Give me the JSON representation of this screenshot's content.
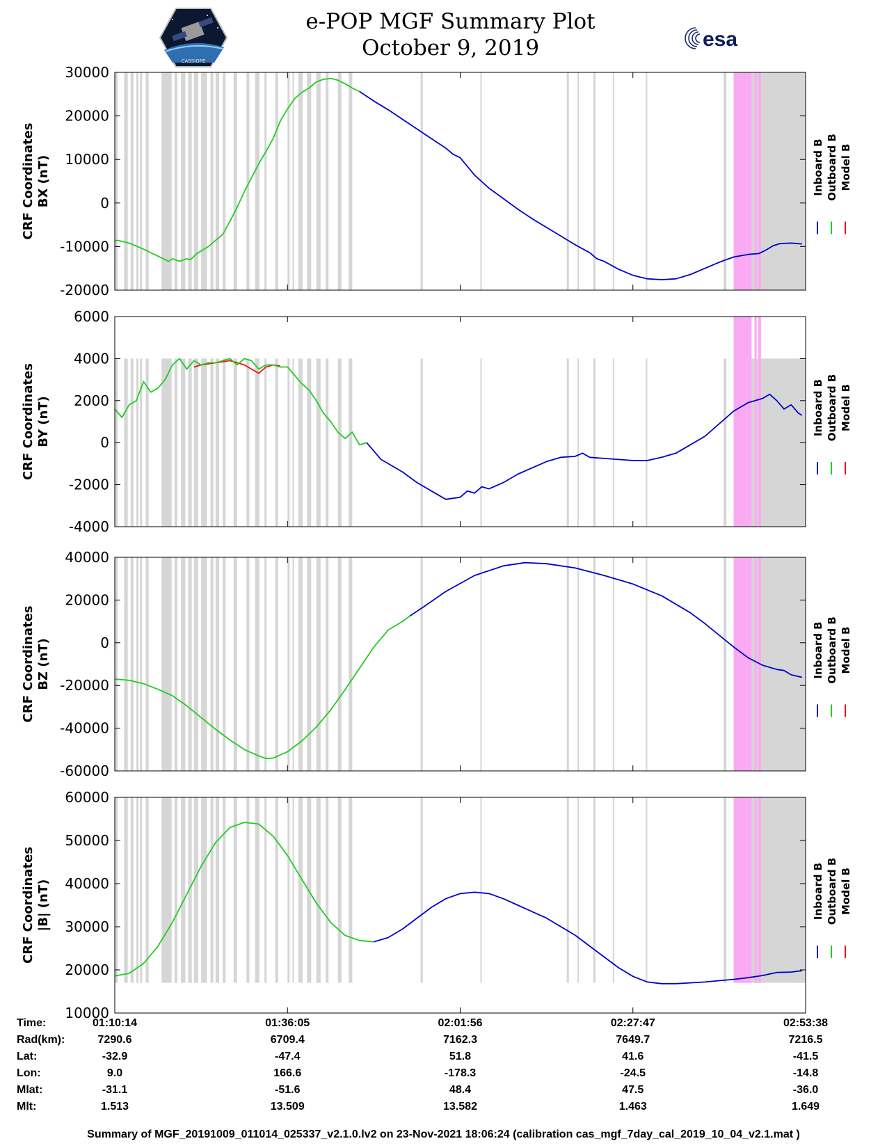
{
  "title": {
    "line1": "e-POP MGF Summary Plot",
    "line2": "October 9, 2019"
  },
  "logos": {
    "left": {
      "name": "cassiope-logo",
      "text": "CASSIOPE"
    },
    "right": {
      "name": "esa-logo",
      "text": "esa"
    }
  },
  "colors": {
    "inboard": "#0000cc",
    "outboard": "#22cc22",
    "model": "#ee1111",
    "gap_gray": "#d6d6d6",
    "gap_pink": "#f9aaf3"
  },
  "legend": {
    "inboard": "Inboard B",
    "outboard": "Outboard B",
    "model": "Model B"
  },
  "chart_data": [
    {
      "type": "line",
      "name": "bx",
      "ylabel": [
        "CRF Coordinates",
        "BX (nT)"
      ],
      "ylim": [
        -20000,
        30000
      ],
      "yticks": [
        -20000,
        -10000,
        0,
        10000,
        20000,
        30000
      ],
      "gap_range": [
        -20000,
        30000
      ],
      "pink_range": [
        -20000,
        30000
      ],
      "outboard": [
        [
          0,
          -8600
        ],
        [
          0.5,
          -8600
        ],
        [
          2,
          -9200
        ],
        [
          4,
          -10600
        ],
        [
          6,
          -12200
        ],
        [
          7.5,
          -13400
        ],
        [
          8,
          -12800
        ],
        [
          9,
          -13400
        ],
        [
          10,
          -12800
        ],
        [
          10.5,
          -13000
        ],
        [
          11.5,
          -11500
        ],
        [
          13,
          -10000
        ],
        [
          14,
          -8600
        ],
        [
          15,
          -7200
        ],
        [
          16,
          -4200
        ],
        [
          17,
          -1000
        ],
        [
          18,
          2600
        ],
        [
          19,
          5800
        ],
        [
          20,
          9000
        ],
        [
          21,
          11800
        ],
        [
          22,
          14800
        ],
        [
          23,
          18800
        ],
        [
          24,
          21600
        ],
        [
          25,
          24000
        ],
        [
          26,
          25400
        ],
        [
          27,
          26400
        ],
        [
          28,
          27800
        ],
        [
          29,
          28400
        ],
        [
          30,
          28600
        ],
        [
          31,
          28200
        ],
        [
          32,
          27400
        ],
        [
          33,
          26400
        ],
        [
          34,
          25600
        ]
      ],
      "inboard": [
        [
          34,
          25600
        ],
        [
          36,
          23400
        ],
        [
          38,
          21400
        ],
        [
          40,
          19200
        ],
        [
          42,
          17000
        ],
        [
          44,
          14800
        ],
        [
          46,
          12600
        ],
        [
          47,
          11200
        ],
        [
          48,
          10400
        ],
        [
          49,
          8400
        ],
        [
          50,
          6400
        ],
        [
          52,
          3400
        ],
        [
          54,
          1000
        ],
        [
          56,
          -1400
        ],
        [
          58,
          -3600
        ],
        [
          60,
          -5600
        ],
        [
          62,
          -7600
        ],
        [
          64,
          -9600
        ],
        [
          66,
          -11400
        ],
        [
          67,
          -12800
        ],
        [
          68,
          -13400
        ],
        [
          70,
          -15200
        ],
        [
          72,
          -16600
        ],
        [
          74,
          -17400
        ],
        [
          76,
          -17600
        ],
        [
          78,
          -17400
        ],
        [
          80,
          -16400
        ],
        [
          82,
          -15000
        ],
        [
          84,
          -13600
        ],
        [
          86,
          -12400
        ],
        [
          88,
          -11800
        ],
        [
          89.5,
          -11600
        ],
        [
          90.5,
          -10800
        ],
        [
          91.5,
          -9800
        ],
        [
          92.5,
          -9300
        ],
        [
          94,
          -9200
        ],
        [
          95.5,
          -9400
        ]
      ],
      "model": []
    },
    {
      "type": "line",
      "name": "by",
      "ylabel": [
        "CRF Coordinates",
        "BY (nT)"
      ],
      "ylim": [
        -4000,
        6000
      ],
      "yticks": [
        -4000,
        -2000,
        0,
        2000,
        4000,
        6000
      ],
      "gap_range": [
        -4000,
        4000
      ],
      "pink_range": [
        -4000,
        6000
      ],
      "outboard": [
        [
          0,
          1600
        ],
        [
          1,
          1200
        ],
        [
          2,
          1800
        ],
        [
          3,
          2000
        ],
        [
          4,
          2900
        ],
        [
          5,
          2400
        ],
        [
          6,
          2600
        ],
        [
          7,
          3000
        ],
        [
          8,
          3700
        ],
        [
          9,
          4000
        ],
        [
          10,
          3500
        ],
        [
          11,
          3900
        ],
        [
          12,
          3700
        ],
        [
          13,
          3800
        ],
        [
          14,
          3800
        ],
        [
          15,
          3900
        ],
        [
          16,
          4000
        ],
        [
          17,
          3700
        ],
        [
          18,
          4000
        ],
        [
          19,
          3900
        ],
        [
          20,
          3500
        ],
        [
          21,
          3700
        ],
        [
          22,
          3700
        ],
        [
          23,
          3600
        ],
        [
          24,
          3600
        ],
        [
          25,
          3200
        ],
        [
          26,
          2800
        ],
        [
          27,
          2500
        ],
        [
          28,
          2000
        ],
        [
          29,
          1400
        ],
        [
          30,
          1000
        ],
        [
          31,
          500
        ],
        [
          32,
          200
        ],
        [
          33,
          500
        ],
        [
          34,
          -100
        ],
        [
          35,
          0
        ]
      ],
      "inboard": [
        [
          35,
          0
        ],
        [
          36,
          -400
        ],
        [
          37,
          -800
        ],
        [
          38,
          -1000
        ],
        [
          40,
          -1400
        ],
        [
          42,
          -1900
        ],
        [
          44,
          -2300
        ],
        [
          46,
          -2700
        ],
        [
          48,
          -2600
        ],
        [
          49,
          -2300
        ],
        [
          50,
          -2400
        ],
        [
          51,
          -2100
        ],
        [
          52,
          -2200
        ],
        [
          54,
          -1900
        ],
        [
          56,
          -1500
        ],
        [
          58,
          -1200
        ],
        [
          60,
          -900
        ],
        [
          62,
          -700
        ],
        [
          64,
          -650
        ],
        [
          65,
          -500
        ],
        [
          66,
          -700
        ],
        [
          68,
          -750
        ],
        [
          70,
          -800
        ],
        [
          72,
          -850
        ],
        [
          74,
          -850
        ],
        [
          76,
          -700
        ],
        [
          78,
          -500
        ],
        [
          80,
          -100
        ],
        [
          82,
          300
        ],
        [
          84,
          900
        ],
        [
          86,
          1500
        ],
        [
          88,
          1900
        ],
        [
          90,
          2100
        ],
        [
          91,
          2300
        ],
        [
          92,
          2000
        ],
        [
          93,
          1600
        ],
        [
          94,
          1800
        ],
        [
          95,
          1400
        ],
        [
          95.5,
          1300
        ]
      ],
      "model": [
        [
          11,
          3600
        ],
        [
          12,
          3700
        ],
        [
          13,
          3750
        ],
        [
          14,
          3800
        ],
        [
          15,
          3850
        ],
        [
          16,
          3900
        ],
        [
          17,
          3800
        ],
        [
          18,
          3700
        ],
        [
          19,
          3500
        ],
        [
          20,
          3300
        ],
        [
          21,
          3600
        ],
        [
          22,
          3700
        ],
        [
          23,
          3650
        ]
      ]
    },
    {
      "type": "line",
      "name": "bz",
      "ylabel": [
        "CRF Coordinates",
        "BZ (nT)"
      ],
      "ylim": [
        -60000,
        40000
      ],
      "yticks": [
        -60000,
        -40000,
        -20000,
        0,
        20000,
        40000
      ],
      "gap_range": [
        -60000,
        40000
      ],
      "pink_range": [
        -60000,
        40000
      ],
      "outboard": [
        [
          0,
          -17000
        ],
        [
          2,
          -17600
        ],
        [
          4,
          -19200
        ],
        [
          6,
          -21800
        ],
        [
          8,
          -24800
        ],
        [
          10,
          -29500
        ],
        [
          12,
          -35000
        ],
        [
          14,
          -40500
        ],
        [
          16,
          -45500
        ],
        [
          18,
          -50000
        ],
        [
          20,
          -53000
        ],
        [
          21,
          -54200
        ],
        [
          22,
          -54000
        ],
        [
          24,
          -51000
        ],
        [
          26,
          -46000
        ],
        [
          28,
          -39500
        ],
        [
          30,
          -31500
        ],
        [
          32,
          -22000
        ],
        [
          34,
          -12000
        ],
        [
          36,
          -2000
        ],
        [
          38,
          6000
        ],
        [
          40,
          10000
        ],
        [
          41,
          12500
        ]
      ],
      "inboard": [
        [
          41,
          12500
        ],
        [
          43,
          17000
        ],
        [
          46,
          24000
        ],
        [
          50,
          31500
        ],
        [
          54,
          36000
        ],
        [
          57,
          37500
        ],
        [
          60,
          37000
        ],
        [
          64,
          35000
        ],
        [
          68,
          31500
        ],
        [
          72,
          27500
        ],
        [
          76,
          22000
        ],
        [
          80,
          14000
        ],
        [
          82,
          9000
        ],
        [
          84,
          3500
        ],
        [
          86,
          -2000
        ],
        [
          88,
          -7000
        ],
        [
          90,
          -10500
        ],
        [
          92,
          -12500
        ],
        [
          93,
          -13000
        ],
        [
          94,
          -15000
        ],
        [
          95.5,
          -16200
        ]
      ],
      "model": []
    },
    {
      "type": "line",
      "name": "bmag",
      "ylabel": [
        "CRF Coordinates",
        "|B| (nT)"
      ],
      "ylim": [
        10000,
        60000
      ],
      "yticks": [
        10000,
        20000,
        30000,
        40000,
        50000,
        60000
      ],
      "gap_range": [
        17000,
        60000
      ],
      "pink_range": [
        17000,
        60000
      ],
      "outboard": [
        [
          0,
          18600
        ],
        [
          2,
          19200
        ],
        [
          4,
          21500
        ],
        [
          6,
          25500
        ],
        [
          8,
          31000
        ],
        [
          10,
          37500
        ],
        [
          12,
          44000
        ],
        [
          14,
          49500
        ],
        [
          16,
          53000
        ],
        [
          18,
          54200
        ],
        [
          20,
          53800
        ],
        [
          22,
          51000
        ],
        [
          24,
          46500
        ],
        [
          26,
          41000
        ],
        [
          28,
          35500
        ],
        [
          30,
          31000
        ],
        [
          32,
          28000
        ],
        [
          34,
          26800
        ],
        [
          36,
          26500
        ]
      ],
      "inboard": [
        [
          36,
          26500
        ],
        [
          38,
          27500
        ],
        [
          40,
          29500
        ],
        [
          42,
          32000
        ],
        [
          44,
          34500
        ],
        [
          46,
          36500
        ],
        [
          48,
          37700
        ],
        [
          50,
          38000
        ],
        [
          52,
          37700
        ],
        [
          54,
          36500
        ],
        [
          56,
          35000
        ],
        [
          58,
          33500
        ],
        [
          60,
          32000
        ],
        [
          62,
          30000
        ],
        [
          64,
          28000
        ],
        [
          66,
          25500
        ],
        [
          68,
          23000
        ],
        [
          70,
          20500
        ],
        [
          72,
          18500
        ],
        [
          74,
          17200
        ],
        [
          76,
          16800
        ],
        [
          78,
          16800
        ],
        [
          80,
          17000
        ],
        [
          82,
          17200
        ],
        [
          84,
          17500
        ],
        [
          86,
          17800
        ],
        [
          88,
          18200
        ],
        [
          90,
          18700
        ],
        [
          92,
          19400
        ],
        [
          94,
          19500
        ],
        [
          95.5,
          19800
        ]
      ],
      "model": []
    }
  ],
  "gaps": {
    "gray": [
      [
        0,
        0.4
      ],
      [
        1.3,
        1.8
      ],
      [
        2.2,
        2.6
      ],
      [
        3,
        3.3
      ],
      [
        3.5,
        3.8
      ],
      [
        4.3,
        4.7
      ],
      [
        6.5,
        7.9
      ],
      [
        8.3,
        8.7
      ],
      [
        9.2,
        9.8
      ],
      [
        10.2,
        10.7
      ],
      [
        11,
        11.6
      ],
      [
        12,
        12.8
      ],
      [
        13.3,
        13.7
      ],
      [
        14,
        14.5
      ],
      [
        15,
        15.4
      ],
      [
        16.5,
        17
      ],
      [
        18.3,
        18.7
      ],
      [
        19.5,
        20.1
      ],
      [
        20.8,
        21.1
      ],
      [
        22.3,
        22.7
      ],
      [
        24,
        24.3
      ],
      [
        24.7,
        24.9
      ],
      [
        25.5,
        26.1
      ],
      [
        26.7,
        27.3
      ],
      [
        28,
        28.6
      ],
      [
        29.3,
        29.7
      ],
      [
        31,
        31.5
      ],
      [
        32.5,
        33
      ],
      [
        42.5,
        42.8
      ],
      [
        50.8,
        51
      ],
      [
        62.8,
        63.1
      ],
      [
        64.3,
        64.5
      ],
      [
        66.5,
        66.8
      ],
      [
        69.2,
        69.4
      ],
      [
        73.8,
        74
      ],
      [
        84.6,
        85
      ],
      [
        94.2,
        95.5
      ]
    ],
    "pink": [
      [
        86,
        88.5
      ],
      [
        88.9,
        89.2
      ],
      [
        89.4,
        89.8
      ]
    ],
    "gray_end": [
      [
        86,
        96
      ]
    ]
  },
  "xaxis": {
    "xlim": [
      0,
      96
    ],
    "tick_positions": [
      0,
      24,
      48,
      72,
      96
    ],
    "rows": [
      {
        "label": "Time:",
        "values": [
          "01:10:14",
          "01:36:05",
          "02:01:56",
          "02:27:47",
          "02:53:38"
        ]
      },
      {
        "label": "Rad(km):",
        "values": [
          "7290.6",
          "6709.4",
          "7162.3",
          "7649.7",
          "7216.5"
        ]
      },
      {
        "label": "Lat:",
        "values": [
          "-32.9",
          "-47.4",
          "51.8",
          "41.6",
          "-41.5"
        ]
      },
      {
        "label": "Lon:",
        "values": [
          "9.0",
          "166.6",
          "-178.3",
          "-24.5",
          "-14.8"
        ]
      },
      {
        "label": "Mlat:",
        "values": [
          "-31.1",
          "-51.6",
          "48.4",
          "47.5",
          "-36.0"
        ]
      },
      {
        "label": "Mlt:",
        "values": [
          "1.513",
          "13.509",
          "13.582",
          "1.463",
          "1.649"
        ]
      }
    ]
  },
  "summary": "Summary of MGF_20191009_011014_025337_v2.1.0.lv2 on 23-Nov-2021 18:06:24 (calibration cas_mgf_7day_cal_2019_10_04_v2.1.mat )"
}
